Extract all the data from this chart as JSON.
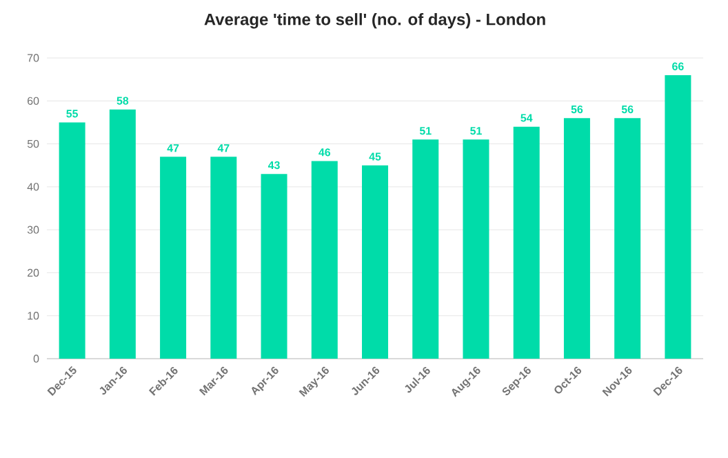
{
  "chart_data": {
    "type": "bar",
    "title": "Average 'time to sell' (no. of days) - London",
    "categories": [
      "Dec-15",
      "Jan-16",
      "Feb-16",
      "Mar-16",
      "Apr-16",
      "May-16",
      "Jun-16",
      "Jul-16",
      "Aug-16",
      "Sep-16",
      "Oct-16",
      "Nov-16",
      "Dec-16"
    ],
    "values": [
      55,
      58,
      47,
      47,
      43,
      46,
      45,
      51,
      51,
      54,
      56,
      56,
      66
    ],
    "color": "#00dca9",
    "ylim": [
      0,
      70
    ],
    "yticks": [
      0,
      10,
      20,
      30,
      40,
      50,
      60,
      70
    ],
    "grid": "y",
    "data_labels": true
  }
}
